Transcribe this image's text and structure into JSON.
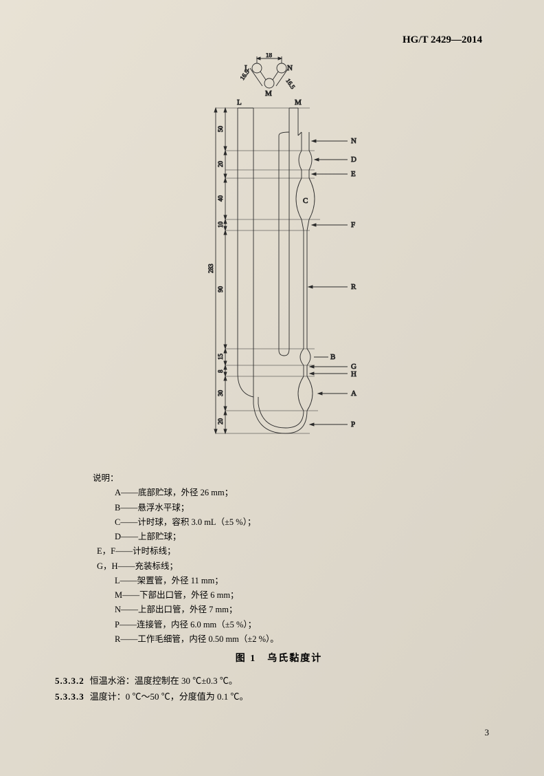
{
  "header": "HG/T 2429—2014",
  "figure": {
    "caption": "图 1　乌氏黏度计",
    "labels": {
      "L": "L",
      "M": "M",
      "N": "N",
      "D": "D",
      "E": "E",
      "C": "C",
      "F": "F",
      "R": "R",
      "B": "B",
      "G": "G",
      "H": "H",
      "A": "A",
      "P": "P"
    },
    "dims": {
      "top_18": "18",
      "diag_165a": "16.5",
      "diag_165b": "16.5",
      "v_283": "283",
      "v_50": "50",
      "v_20a": "20",
      "v_40": "40",
      "v_10": "10",
      "v_90": "90",
      "v_15": "15",
      "v_8": "8",
      "v_30": "30",
      "v_20b": "20"
    },
    "style": {
      "stroke": "#2a2a2a",
      "thin": 0.9,
      "text_fontsize": 9,
      "label_fontsize": 11
    }
  },
  "legend": {
    "intro": "说明：",
    "items": [
      {
        "k": "A",
        "sep": "——",
        "t": "底部贮球，外径 26 mm；",
        "cls": "item"
      },
      {
        "k": "B",
        "sep": "——",
        "t": "悬浮水平球；",
        "cls": "item"
      },
      {
        "k": "C",
        "sep": "——",
        "t": "计时球，容积 3.0 mL（±5 %）；",
        "cls": "item"
      },
      {
        "k": "D",
        "sep": "——",
        "t": "上部贮球；",
        "cls": "item"
      },
      {
        "k": "E，F",
        "sep": "——",
        "t": "计时标线；",
        "cls": "item-short"
      },
      {
        "k": "G，H",
        "sep": "——",
        "t": "充装标线；",
        "cls": "item-short"
      },
      {
        "k": "L",
        "sep": "——",
        "t": "架置管，外径 11 mm；",
        "cls": "item"
      },
      {
        "k": "M",
        "sep": "——",
        "t": "下部出口管，外径 6 mm；",
        "cls": "item"
      },
      {
        "k": "N",
        "sep": "——",
        "t": "上部出口管，外径 7 mm；",
        "cls": "item"
      },
      {
        "k": "P",
        "sep": "——",
        "t": "连接管，内径 6.0 mm（±5 %）；",
        "cls": "item"
      },
      {
        "k": "R",
        "sep": "——",
        "t": "工作毛细管，内径 0.50 mm（±2 %）。",
        "cls": "item"
      }
    ]
  },
  "clauses": [
    {
      "num": "5.3.3.2",
      "text": "恒温水浴：温度控制在 30 ℃±0.3 ℃。"
    },
    {
      "num": "5.3.3.3",
      "text": "温度计：0 ℃～50 ℃，分度值为 0.1 ℃。"
    }
  ],
  "pagenum": "3"
}
